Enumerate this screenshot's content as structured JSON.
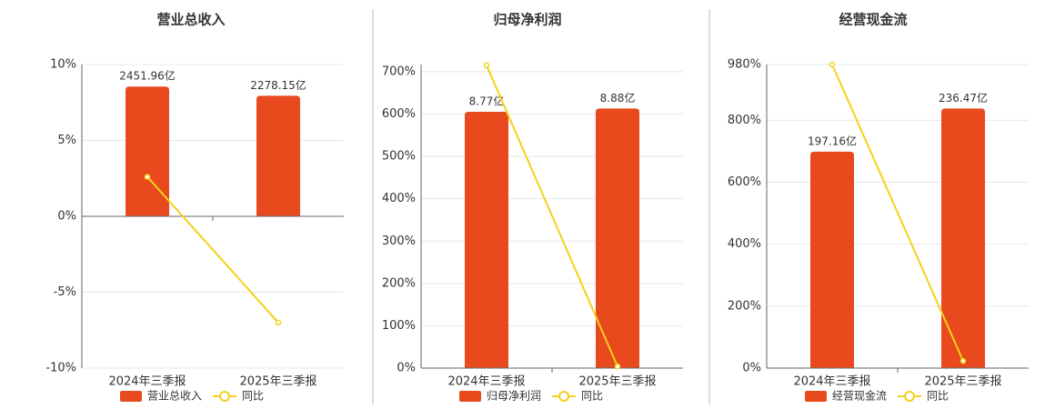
{
  "chart_data": [
    {
      "type": "bar",
      "title": "营业总收入",
      "categories": [
        "2024年三季报",
        "2025年三季报"
      ],
      "series": [
        {
          "name": "营业总收入",
          "color": "#e8491d",
          "values": [
            2451.96,
            2278.15
          ],
          "value_labels": [
            "2451.96亿",
            "2278.15亿"
          ]
        },
        {
          "name": "同比",
          "color": "#f2d21b",
          "values": [
            2.6,
            -7.0
          ]
        }
      ],
      "ylim": [
        -10,
        10
      ],
      "yticks": [
        {
          "value": -10,
          "label": "-10%"
        },
        {
          "value": -5,
          "label": "-5%"
        },
        {
          "value": 0,
          "label": "0%"
        },
        {
          "value": 5,
          "label": "5%"
        },
        {
          "value": 10,
          "label": "10%"
        }
      ],
      "grid": true
    },
    {
      "type": "bar",
      "title": "归母净利润",
      "categories": [
        "2024年三季报",
        "2025年三季报"
      ],
      "series": [
        {
          "name": "归母净利润",
          "color": "#e8491d",
          "values": [
            8.77,
            8.88
          ],
          "value_labels": [
            "8.77亿",
            "8.88亿"
          ]
        },
        {
          "name": "同比",
          "color": "#f2d21b",
          "values": [
            715,
            4
          ]
        }
      ],
      "ylim": [
        0,
        717
      ],
      "yticks": [
        {
          "value": 0,
          "label": "0%"
        },
        {
          "value": 100,
          "label": "100%"
        },
        {
          "value": 200,
          "label": "200%"
        },
        {
          "value": 300,
          "label": "300%"
        },
        {
          "value": 400,
          "label": "400%"
        },
        {
          "value": 500,
          "label": "500%"
        },
        {
          "value": 600,
          "label": "600%"
        },
        {
          "value": 700,
          "label": "700%"
        }
      ],
      "grid": true
    },
    {
      "type": "bar",
      "title": "经营现金流",
      "categories": [
        "2024年三季报",
        "2025年三季报"
      ],
      "series": [
        {
          "name": "经营现金流",
          "color": "#e8491d",
          "values": [
            197.16,
            236.47
          ],
          "value_labels": [
            "197.16亿",
            "236.47亿"
          ]
        },
        {
          "name": "同比",
          "color": "#f2d21b",
          "values": [
            980,
            23
          ]
        }
      ],
      "ylim": [
        0,
        980
      ],
      "yticks": [
        {
          "value": 0,
          "label": "0%"
        },
        {
          "value": 200,
          "label": "200%"
        },
        {
          "value": 400,
          "label": "400%"
        },
        {
          "value": 600,
          "label": "600%"
        },
        {
          "value": 800,
          "label": "800%"
        },
        {
          "value": 980,
          "label": "980%"
        }
      ],
      "grid": true
    }
  ]
}
